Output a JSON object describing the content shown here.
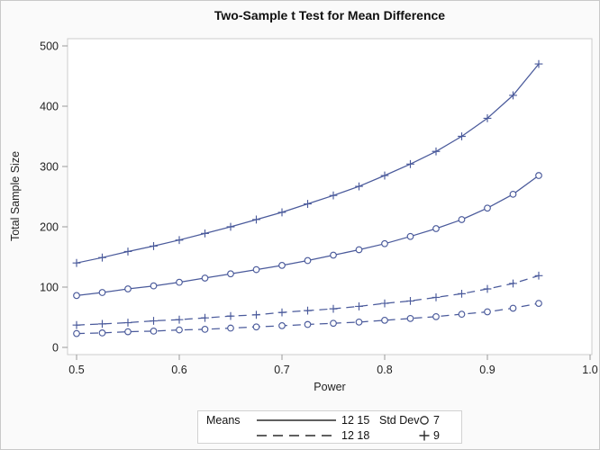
{
  "title": "Two-Sample t Test for Mean Difference",
  "chart_data": {
    "type": "line",
    "title": "Two-Sample t Test for Mean Difference",
    "xlabel": "Power",
    "ylabel": "Total Sample Size",
    "xlim": [
      0.5,
      1.0
    ],
    "ylim": [
      0,
      500
    ],
    "x_ticks": [
      0.5,
      0.6,
      0.7,
      0.8,
      0.9,
      1.0
    ],
    "x_tick_labels": [
      "0.5",
      "0.6",
      "0.7",
      "0.8",
      "0.9",
      "1.0"
    ],
    "y_ticks": [
      0,
      100,
      200,
      300,
      400,
      500
    ],
    "y_tick_labels": [
      "0",
      "100",
      "200",
      "300",
      "400",
      "500"
    ],
    "grid": false,
    "legend_position": "bottom",
    "series_color": "#4a5a9b",
    "x": [
      0.5,
      0.525,
      0.55,
      0.575,
      0.6,
      0.625,
      0.65,
      0.675,
      0.7,
      0.725,
      0.75,
      0.775,
      0.8,
      0.825,
      0.85,
      0.875,
      0.9,
      0.925,
      0.95
    ],
    "series": [
      {
        "name": "Means 12 15, Std Dev 9",
        "means": "12 15",
        "std_dev": "9",
        "line": "solid",
        "marker": "plus",
        "values": [
          140,
          149,
          159,
          168,
          178,
          189,
          200,
          212,
          224,
          238,
          252,
          267,
          285,
          304,
          325,
          350,
          380,
          418,
          470
        ]
      },
      {
        "name": "Means 12 15, Std Dev 7",
        "means": "12 15",
        "std_dev": "7",
        "line": "solid",
        "marker": "circle",
        "values": [
          86,
          91,
          97,
          102,
          108,
          115,
          122,
          129,
          136,
          144,
          153,
          162,
          172,
          184,
          197,
          212,
          231,
          254,
          285
        ]
      },
      {
        "name": "Means 12 18, Std Dev 9",
        "means": "12 18",
        "std_dev": "9",
        "line": "dashed",
        "marker": "plus",
        "values": [
          37,
          39,
          41,
          44,
          46,
          49,
          52,
          54,
          58,
          61,
          64,
          68,
          73,
          77,
          83,
          89,
          97,
          106,
          119
        ]
      },
      {
        "name": "Means 12 18, Std Dev 7",
        "means": "12 18",
        "std_dev": "7",
        "line": "dashed",
        "marker": "circle",
        "values": [
          23,
          24,
          26,
          27,
          29,
          30,
          32,
          34,
          36,
          38,
          40,
          42,
          45,
          48,
          51,
          55,
          59,
          65,
          73
        ]
      }
    ]
  },
  "legend": {
    "means_label": "Means",
    "stddev_label": "Std Dev",
    "means_items": [
      {
        "label": "12 15",
        "line": "solid"
      },
      {
        "label": "12 18",
        "line": "dashed"
      }
    ],
    "stddev_items": [
      {
        "label": "7",
        "marker": "circle"
      },
      {
        "label": "9",
        "marker": "plus"
      }
    ]
  },
  "colors": {
    "curve": "#4a5a9b",
    "wall_border": "#cccccc",
    "tick": "#9a9a9a",
    "text": "#222222",
    "canvas_bg": "#fafafa",
    "legend_border": "#d2d2d2",
    "legend_glyph": "#2b2b2b"
  }
}
